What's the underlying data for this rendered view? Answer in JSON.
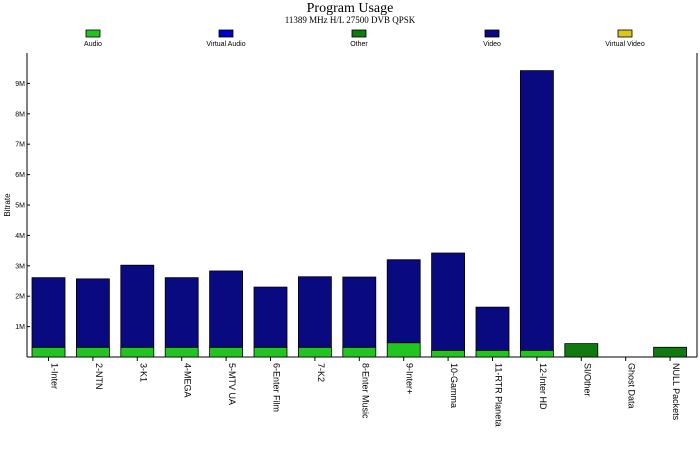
{
  "chart_data": {
    "type": "bar",
    "title": "Program Usage",
    "subtitle": "11389 MHz H/L 27500 DVB QPSK",
    "xlabel": "",
    "ylabel": "Bitrate",
    "ylim": [
      0,
      10000000
    ],
    "yticks": [
      1000000,
      2000000,
      3000000,
      4000000,
      5000000,
      6000000,
      7000000,
      8000000,
      9000000
    ],
    "ytick_labels": [
      "1M",
      "2M",
      "3M",
      "4M",
      "5M",
      "6M",
      "7M",
      "8M",
      "9M"
    ],
    "grid": false,
    "stacked": true,
    "legend_position": "top",
    "categories": [
      "1-Inter",
      "2-NTN",
      "3-K1",
      "4-MEGA",
      "5-MTV UA",
      "6-Enter Film",
      "7-K2",
      "8-Enter Music",
      "9-Inter+",
      "10-Gamma",
      "11-RTR Planeta",
      "12-Inter HD",
      "SI/Other",
      "Ghost Data",
      "NULL Packets"
    ],
    "series": [
      {
        "name": "Audio",
        "color": "#22c422",
        "values": [
          320000,
          320000,
          320000,
          320000,
          320000,
          320000,
          320000,
          320000,
          470000,
          220000,
          220000,
          220000,
          0,
          0,
          0
        ]
      },
      {
        "name": "Virtual Audio",
        "color": "#0000c8",
        "values": [
          0,
          0,
          0,
          0,
          0,
          0,
          0,
          0,
          0,
          0,
          0,
          0,
          0,
          0,
          0
        ]
      },
      {
        "name": "Other",
        "color": "#107a10",
        "values": [
          0,
          0,
          0,
          0,
          0,
          0,
          0,
          0,
          0,
          0,
          0,
          0,
          440000,
          0,
          320000
        ]
      },
      {
        "name": "Video",
        "color": "#0a0a80",
        "values": [
          2290000,
          2250000,
          2700000,
          2290000,
          2510000,
          1980000,
          2320000,
          2310000,
          2730000,
          3200000,
          1420000,
          9200000,
          0,
          0,
          0
        ]
      },
      {
        "name": "Virtual Video",
        "color": "#d8c81c",
        "values": [
          0,
          0,
          0,
          0,
          0,
          0,
          0,
          0,
          0,
          0,
          0,
          0,
          0,
          0,
          0
        ]
      }
    ]
  }
}
